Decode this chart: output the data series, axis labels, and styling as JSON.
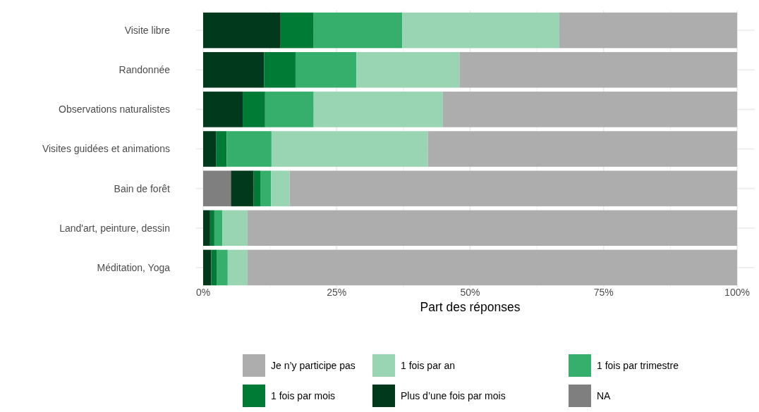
{
  "chart_data": {
    "type": "bar",
    "orientation": "horizontal",
    "stacked": true,
    "xlabel": "Part des réponses",
    "categories": [
      "Visite libre",
      "Randonnée",
      "Observations naturalistes",
      "Visites guidées et animations",
      "Bain de forêt",
      "Land'art, peinture, dessin",
      "Méditation, Yoga"
    ],
    "series": [
      {
        "name": "NA",
        "color": "#7f7f7f",
        "values": [
          0,
          0,
          0,
          0,
          5.2,
          0,
          0
        ]
      },
      {
        "name": "Plus d’une fois par mois",
        "color": "#00391b",
        "values": [
          14.5,
          11.4,
          7.4,
          2.4,
          4.2,
          1.3,
          1.5
        ]
      },
      {
        "name": "1 fois par mois",
        "color": "#007b36",
        "values": [
          6.2,
          5.9,
          4.2,
          2.0,
          1.3,
          0.8,
          1.1
        ]
      },
      {
        "name": "1 fois par trimestre",
        "color": "#35af6b",
        "values": [
          16.6,
          11.4,
          9.1,
          8.4,
          2.0,
          1.5,
          2.0
        ]
      },
      {
        "name": "1 fois par an",
        "color": "#99d5b3",
        "values": [
          29.4,
          19.3,
          24.2,
          29.3,
          3.5,
          4.7,
          3.7
        ]
      },
      {
        "name": "Je n’y participe pas",
        "color": "#adadad",
        "values": [
          33.3,
          52.0,
          55.1,
          57.9,
          83.8,
          91.7,
          91.7
        ]
      }
    ],
    "xlim": [
      0,
      100
    ],
    "xticks": [
      {
        "value": 0,
        "label": "0%"
      },
      {
        "value": 12.5,
        "label": null
      },
      {
        "value": 25,
        "label": "25%"
      },
      {
        "value": 37.5,
        "label": null
      },
      {
        "value": 50,
        "label": "50%"
      },
      {
        "value": 62.5,
        "label": null
      },
      {
        "value": 75,
        "label": "75%"
      },
      {
        "value": 87.5,
        "label": null
      },
      {
        "value": 100,
        "label": "100%"
      }
    ],
    "grid": true,
    "legend": "bottom"
  }
}
